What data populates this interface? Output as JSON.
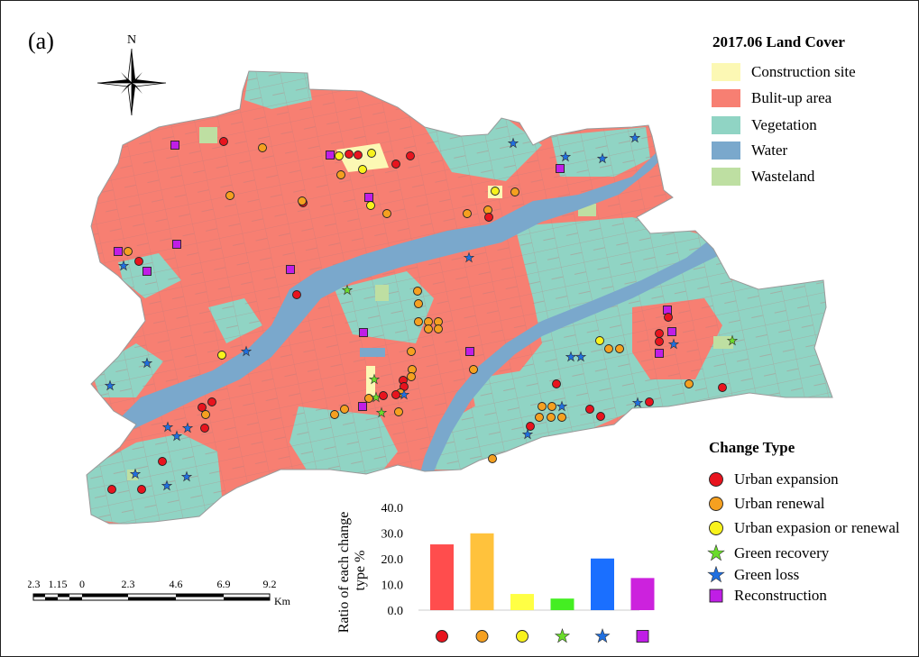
{
  "panel_label": "(a)",
  "north": {
    "label": "N",
    "icon": "north-arrow-compass-icon"
  },
  "legend": {
    "title": "2017.06  Land Cover",
    "items": [
      {
        "label": "Construction site",
        "color": "#fcf8b4"
      },
      {
        "label": "Bulit-up area",
        "color": "#f77f72"
      },
      {
        "label": "Vegetation",
        "color": "#90d4c4"
      },
      {
        "label": "Water",
        "color": "#7aa8cc"
      },
      {
        "label": "Wasteland",
        "color": "#bedfa2"
      }
    ]
  },
  "change_legend": {
    "title": "Change Type",
    "items": [
      {
        "label": "Urban expansion",
        "symbol": "circle",
        "color": "#e8141e"
      },
      {
        "label": "Urban renewal",
        "symbol": "circle",
        "color": "#f5a020"
      },
      {
        "label": "Urban expasion or renewal",
        "symbol": "circle",
        "color": "#f8f21c"
      },
      {
        "label": "Green recovery",
        "symbol": "star",
        "color": "#6adc2a"
      },
      {
        "label": "Green loss",
        "symbol": "star",
        "color": "#1f6fe0"
      },
      {
        "label": "Reconstruction",
        "symbol": "square",
        "color": "#c01ee6"
      }
    ]
  },
  "scale_bar": {
    "ticks": [
      "2.3",
      "1.15",
      "0",
      "2.3",
      "4.6",
      "6.9",
      "9.2"
    ],
    "unit": "Km"
  },
  "chart_data": {
    "type": "bar",
    "categories": [
      "Urban expansion",
      "Urban renewal",
      "Urban expasion or renewal",
      "Green recovery",
      "Green loss",
      "Reconstruction"
    ],
    "values": [
      25.6,
      29.9,
      6.3,
      4.5,
      20.1,
      12.5
    ],
    "colors": [
      "#ff4d4d",
      "#ffc23c",
      "#ffff44",
      "#44ee22",
      "#1a6fff",
      "#cc22dd"
    ],
    "ylabel": "Ratio of each change type  %",
    "yticks": [
      "0.0",
      "10.0",
      "20.0",
      "30.0",
      "40.0"
    ],
    "ylim": [
      0,
      40
    ],
    "x_symbols": [
      "circle",
      "circle",
      "circle",
      "star",
      "star",
      "square"
    ],
    "x_symbol_colors": [
      "#e8141e",
      "#f5a020",
      "#f8f21c",
      "#6adc2a",
      "#1f6fe0",
      "#c01ee6"
    ]
  },
  "map_markers": [
    {
      "t": "square",
      "x": 193,
      "y": 160
    },
    {
      "t": "circle",
      "c": 0,
      "x": 247,
      "y": 156
    },
    {
      "t": "circle",
      "c": 1,
      "x": 290,
      "y": 163
    },
    {
      "t": "circle",
      "c": 1,
      "x": 254,
      "y": 216
    },
    {
      "t": "circle",
      "c": 0,
      "x": 335,
      "y": 224
    },
    {
      "t": "circle",
      "c": 1,
      "x": 334,
      "y": 222
    },
    {
      "t": "square",
      "x": 365,
      "y": 171
    },
    {
      "t": "circle",
      "c": 2,
      "x": 375,
      "y": 172
    },
    {
      "t": "circle",
      "c": 0,
      "x": 386,
      "y": 170
    },
    {
      "t": "circle",
      "c": 0,
      "x": 396,
      "y": 171
    },
    {
      "t": "circle",
      "c": 2,
      "x": 411,
      "y": 169
    },
    {
      "t": "circle",
      "c": 1,
      "x": 377,
      "y": 193
    },
    {
      "t": "circle",
      "c": 2,
      "x": 401,
      "y": 187
    },
    {
      "t": "circle",
      "c": 0,
      "x": 438,
      "y": 181
    },
    {
      "t": "circle",
      "c": 0,
      "x": 454,
      "y": 172
    },
    {
      "t": "square",
      "x": 408,
      "y": 218
    },
    {
      "t": "circle",
      "c": 2,
      "x": 410,
      "y": 227
    },
    {
      "t": "circle",
      "c": 1,
      "x": 428,
      "y": 236
    },
    {
      "t": "circle",
      "c": 2,
      "x": 548,
      "y": 211
    },
    {
      "t": "circle",
      "c": 1,
      "x": 570,
      "y": 212
    },
    {
      "t": "circle",
      "c": 1,
      "x": 517,
      "y": 236
    },
    {
      "t": "circle",
      "c": 1,
      "x": 540,
      "y": 232
    },
    {
      "t": "circle",
      "c": 0,
      "x": 541,
      "y": 240
    },
    {
      "t": "star",
      "c": 4,
      "x": 568,
      "y": 158
    },
    {
      "t": "star",
      "c": 4,
      "x": 626,
      "y": 173
    },
    {
      "t": "square",
      "x": 620,
      "y": 186
    },
    {
      "t": "star",
      "c": 4,
      "x": 667,
      "y": 175
    },
    {
      "t": "star",
      "c": 4,
      "x": 703,
      "y": 152
    },
    {
      "t": "square",
      "x": 130,
      "y": 278
    },
    {
      "t": "circle",
      "c": 1,
      "x": 141,
      "y": 278
    },
    {
      "t": "circle",
      "c": 0,
      "x": 153,
      "y": 289
    },
    {
      "t": "star",
      "c": 4,
      "x": 136,
      "y": 294
    },
    {
      "t": "square",
      "x": 162,
      "y": 300
    },
    {
      "t": "square",
      "x": 195,
      "y": 270
    },
    {
      "t": "square",
      "x": 321,
      "y": 298
    },
    {
      "t": "circle",
      "c": 0,
      "x": 328,
      "y": 326
    },
    {
      "t": "star",
      "c": 3,
      "x": 384,
      "y": 321
    },
    {
      "t": "star",
      "c": 4,
      "x": 519,
      "y": 285
    },
    {
      "t": "circle",
      "c": 1,
      "x": 462,
      "y": 322
    },
    {
      "t": "circle",
      "c": 1,
      "x": 463,
      "y": 336
    },
    {
      "t": "circle",
      "c": 1,
      "x": 463,
      "y": 356
    },
    {
      "t": "circle",
      "c": 1,
      "x": 474,
      "y": 356
    },
    {
      "t": "circle",
      "c": 1,
      "x": 485,
      "y": 356
    },
    {
      "t": "circle",
      "c": 1,
      "x": 474,
      "y": 364
    },
    {
      "t": "circle",
      "c": 1,
      "x": 485,
      "y": 364
    },
    {
      "t": "square",
      "x": 402,
      "y": 368
    },
    {
      "t": "circle",
      "c": 1,
      "x": 455,
      "y": 389
    },
    {
      "t": "circle",
      "c": 1,
      "x": 456,
      "y": 409
    },
    {
      "t": "circle",
      "c": 1,
      "x": 455,
      "y": 417
    },
    {
      "t": "circle",
      "c": 0,
      "x": 446,
      "y": 421
    },
    {
      "t": "circle",
      "c": 0,
      "x": 447,
      "y": 428
    },
    {
      "t": "circle",
      "c": 1,
      "x": 443,
      "y": 435
    },
    {
      "t": "star",
      "c": 3,
      "x": 414,
      "y": 420
    },
    {
      "t": "circle",
      "c": 1,
      "x": 408,
      "y": 441
    },
    {
      "t": "star",
      "c": 3,
      "x": 416,
      "y": 440
    },
    {
      "t": "circle",
      "c": 0,
      "x": 424,
      "y": 438
    },
    {
      "t": "circle",
      "c": 0,
      "x": 438,
      "y": 437
    },
    {
      "t": "star",
      "c": 4,
      "x": 447,
      "y": 437
    },
    {
      "t": "square",
      "x": 401,
      "y": 450
    },
    {
      "t": "circle",
      "c": 1,
      "x": 381,
      "y": 453
    },
    {
      "t": "circle",
      "c": 1,
      "x": 370,
      "y": 459
    },
    {
      "t": "star",
      "c": 3,
      "x": 422,
      "y": 457
    },
    {
      "t": "circle",
      "c": 1,
      "x": 441,
      "y": 456
    },
    {
      "t": "square",
      "x": 520,
      "y": 389
    },
    {
      "t": "circle",
      "c": 1,
      "x": 524,
      "y": 409
    },
    {
      "t": "circle",
      "c": 2,
      "x": 245,
      "y": 393
    },
    {
      "t": "star",
      "c": 4,
      "x": 272,
      "y": 389
    },
    {
      "t": "star",
      "c": 4,
      "x": 162,
      "y": 402
    },
    {
      "t": "star",
      "c": 4,
      "x": 121,
      "y": 427
    },
    {
      "t": "circle",
      "c": 0,
      "x": 234,
      "y": 445
    },
    {
      "t": "circle",
      "c": 0,
      "x": 223,
      "y": 451
    },
    {
      "t": "circle",
      "c": 1,
      "x": 227,
      "y": 459
    },
    {
      "t": "circle",
      "c": 0,
      "x": 226,
      "y": 474
    },
    {
      "t": "star",
      "c": 4,
      "x": 185,
      "y": 473
    },
    {
      "t": "star",
      "c": 4,
      "x": 195,
      "y": 483
    },
    {
      "t": "star",
      "c": 4,
      "x": 207,
      "y": 474
    },
    {
      "t": "circle",
      "c": 0,
      "x": 179,
      "y": 511
    },
    {
      "t": "star",
      "c": 4,
      "x": 149,
      "y": 525
    },
    {
      "t": "star",
      "c": 4,
      "x": 206,
      "y": 528
    },
    {
      "t": "star",
      "c": 4,
      "x": 184,
      "y": 538
    },
    {
      "t": "circle",
      "c": 0,
      "x": 123,
      "y": 542
    },
    {
      "t": "circle",
      "c": 0,
      "x": 156,
      "y": 542
    },
    {
      "t": "circle",
      "c": 2,
      "x": 664,
      "y": 377
    },
    {
      "t": "circle",
      "c": 1,
      "x": 674,
      "y": 386
    },
    {
      "t": "circle",
      "c": 1,
      "x": 686,
      "y": 386
    },
    {
      "t": "star",
      "c": 4,
      "x": 632,
      "y": 395
    },
    {
      "t": "star",
      "c": 4,
      "x": 643,
      "y": 395
    },
    {
      "t": "circle",
      "c": 0,
      "x": 616,
      "y": 425
    },
    {
      "t": "circle",
      "c": 1,
      "x": 600,
      "y": 450
    },
    {
      "t": "circle",
      "c": 1,
      "x": 611,
      "y": 450
    },
    {
      "t": "star",
      "c": 4,
      "x": 622,
      "y": 450
    },
    {
      "t": "circle",
      "c": 1,
      "x": 597,
      "y": 462
    },
    {
      "t": "circle",
      "c": 1,
      "x": 610,
      "y": 462
    },
    {
      "t": "circle",
      "c": 1,
      "x": 622,
      "y": 462
    },
    {
      "t": "circle",
      "c": 0,
      "x": 587,
      "y": 472
    },
    {
      "t": "star",
      "c": 4,
      "x": 584,
      "y": 481
    },
    {
      "t": "circle",
      "c": 0,
      "x": 653,
      "y": 453
    },
    {
      "t": "circle",
      "c": 0,
      "x": 665,
      "y": 461
    },
    {
      "t": "star",
      "c": 4,
      "x": 706,
      "y": 446
    },
    {
      "t": "circle",
      "c": 0,
      "x": 719,
      "y": 445
    },
    {
      "t": "circle",
      "c": 1,
      "x": 545,
      "y": 508
    },
    {
      "t": "square",
      "x": 739,
      "y": 343
    },
    {
      "t": "circle",
      "c": 0,
      "x": 740,
      "y": 351
    },
    {
      "t": "circle",
      "c": 0,
      "x": 730,
      "y": 369
    },
    {
      "t": "circle",
      "c": 0,
      "x": 730,
      "y": 378
    },
    {
      "t": "square",
      "x": 744,
      "y": 367
    },
    {
      "t": "star",
      "c": 4,
      "x": 746,
      "y": 381
    },
    {
      "t": "square",
      "x": 730,
      "y": 391
    },
    {
      "t": "circle",
      "c": 1,
      "x": 763,
      "y": 425
    },
    {
      "t": "circle",
      "c": 0,
      "x": 800,
      "y": 429
    },
    {
      "t": "star",
      "c": 3,
      "x": 811,
      "y": 377
    }
  ]
}
